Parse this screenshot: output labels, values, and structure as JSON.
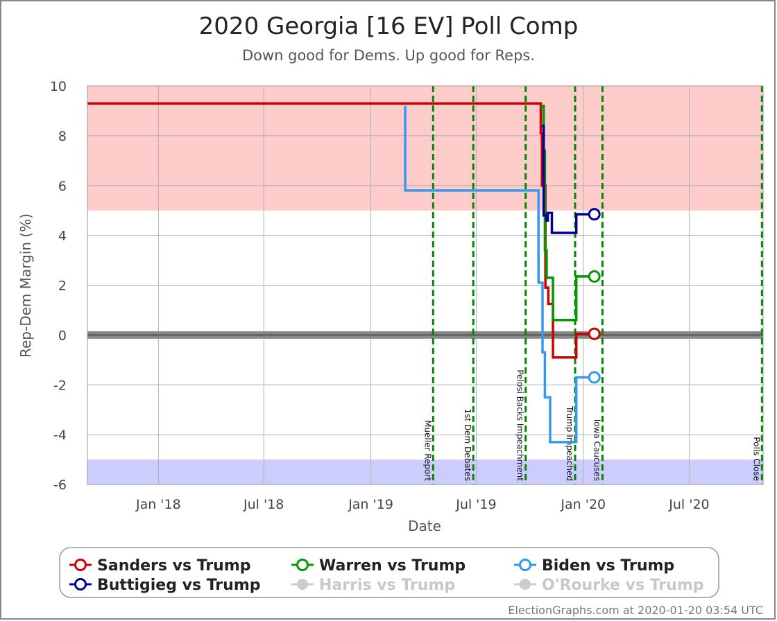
{
  "chart_data": {
    "type": "line",
    "title": "2020 Georgia [16 EV] Poll Comp",
    "subtitle": "Down good for Dems. Up good for Reps.",
    "xlabel": "Date",
    "ylabel": "Rep-Dem Margin (%)",
    "xlim": [
      "2017-09-01",
      "2020-11-05"
    ],
    "ylim": [
      -6,
      10
    ],
    "grid": true,
    "legend_position": "bottom",
    "x_ticks": [
      {
        "date": "2018-01-01",
        "label": "Jan '18"
      },
      {
        "date": "2018-07-01",
        "label": "Jul '18"
      },
      {
        "date": "2019-01-01",
        "label": "Jan '19"
      },
      {
        "date": "2019-07-01",
        "label": "Jul '19"
      },
      {
        "date": "2020-01-01",
        "label": "Jan '20"
      },
      {
        "date": "2020-07-01",
        "label": "Jul '20"
      }
    ],
    "y_ticks": [
      10,
      8,
      6,
      4,
      2,
      0,
      -2,
      -4,
      -6
    ],
    "bands": [
      {
        "from": 5,
        "to": 10,
        "color": "#ffcccc"
      },
      {
        "from": -6,
        "to": -5,
        "color": "#ccccff"
      }
    ],
    "center_band": {
      "from": -0.15,
      "to": 0.15,
      "color": "#888888"
    },
    "events": [
      {
        "date": "2019-04-18",
        "label": "Mueller Report"
      },
      {
        "date": "2019-06-26",
        "label": "1st Dem Debates"
      },
      {
        "date": "2019-09-24",
        "label": "Pelosi Backs Impeachment"
      },
      {
        "date": "2019-12-18",
        "label": "Trump Impeached"
      },
      {
        "date": "2020-02-03",
        "label": "Iowa Caucuses"
      },
      {
        "date": "2020-11-03",
        "label": "Polls Close"
      }
    ],
    "series": [
      {
        "name": "Sanders vs Trump",
        "color": "#cc0000",
        "active": true,
        "points": [
          [
            "2017-09-01",
            9.3
          ],
          [
            "2019-10-20",
            9.3
          ],
          [
            "2019-10-20",
            8.1
          ],
          [
            "2019-10-22",
            8.1
          ],
          [
            "2019-10-22",
            6.0
          ],
          [
            "2019-10-28",
            6.0
          ],
          [
            "2019-10-28",
            1.9
          ],
          [
            "2019-11-02",
            1.9
          ],
          [
            "2019-11-02",
            1.25
          ],
          [
            "2019-11-10",
            1.25
          ],
          [
            "2019-11-10",
            -0.9
          ],
          [
            "2019-12-20",
            -0.9
          ],
          [
            "2019-12-20",
            0.05
          ],
          [
            "2020-01-20",
            0.05
          ]
        ]
      },
      {
        "name": "Warren vs Trump",
        "color": "#009900",
        "active": true,
        "points": [
          [
            "2019-10-20",
            9.2
          ],
          [
            "2019-10-25",
            9.2
          ],
          [
            "2019-10-25",
            7.4
          ],
          [
            "2019-10-27",
            7.4
          ],
          [
            "2019-10-27",
            3.4
          ],
          [
            "2019-10-30",
            3.4
          ],
          [
            "2019-10-30",
            2.3
          ],
          [
            "2019-11-10",
            2.3
          ],
          [
            "2019-11-10",
            0.6
          ],
          [
            "2019-12-20",
            0.6
          ],
          [
            "2019-12-20",
            2.35
          ],
          [
            "2020-01-20",
            2.35
          ]
        ]
      },
      {
        "name": "Biden vs Trump",
        "color": "#3399ee",
        "active": true,
        "points": [
          [
            "2019-03-01",
            9.2
          ],
          [
            "2019-03-01",
            5.8
          ],
          [
            "2019-10-16",
            5.8
          ],
          [
            "2019-10-16",
            2.1
          ],
          [
            "2019-10-23",
            2.1
          ],
          [
            "2019-10-23",
            -0.7
          ],
          [
            "2019-10-27",
            -0.7
          ],
          [
            "2019-10-27",
            -2.5
          ],
          [
            "2019-11-05",
            -2.5
          ],
          [
            "2019-11-05",
            -4.3
          ],
          [
            "2019-12-20",
            -4.3
          ],
          [
            "2019-12-20",
            -1.7
          ],
          [
            "2020-01-20",
            -1.7
          ]
        ]
      },
      {
        "name": "Buttigieg vs Trump",
        "color": "#000099",
        "active": true,
        "points": [
          [
            "2019-10-22",
            8.4
          ],
          [
            "2019-10-25",
            8.4
          ],
          [
            "2019-10-25",
            4.8
          ],
          [
            "2019-10-30",
            4.8
          ],
          [
            "2019-10-30",
            4.6
          ],
          [
            "2019-11-01",
            4.6
          ],
          [
            "2019-11-01",
            4.9
          ],
          [
            "2019-11-08",
            4.9
          ],
          [
            "2019-11-08",
            4.1
          ],
          [
            "2019-12-20",
            4.1
          ],
          [
            "2019-12-20",
            4.85
          ],
          [
            "2020-01-20",
            4.85
          ]
        ]
      },
      {
        "name": "Harris vs Trump",
        "color": "#cccccc",
        "active": false,
        "points": []
      },
      {
        "name": "O'Rourke vs Trump",
        "color": "#cccccc",
        "active": false,
        "points": []
      }
    ]
  },
  "credit": "ElectionGraphs.com at 2020-01-20 03:54 UTC"
}
